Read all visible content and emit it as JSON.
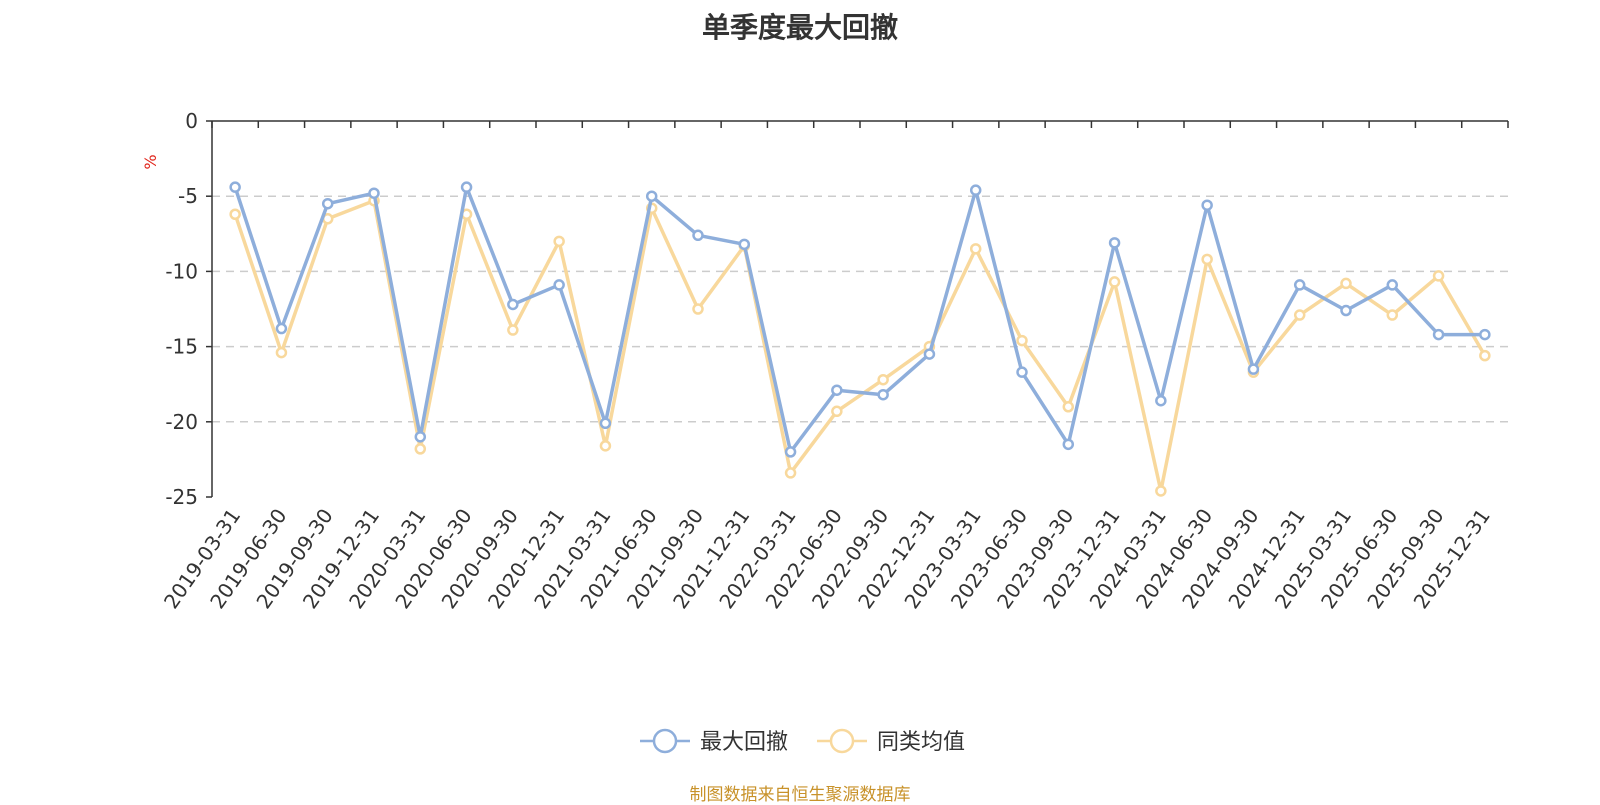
{
  "chart_data": {
    "type": "line",
    "title": "单季度最大回撤",
    "ylabel": "%",
    "ylim": [
      -25,
      0
    ],
    "yticks": [
      0,
      -5,
      -10,
      -15,
      -20,
      -25
    ],
    "grid": true,
    "legend_position": "bottom",
    "categories": [
      "2019-03-31",
      "2019-06-30",
      "2019-09-30",
      "2019-12-31",
      "2020-03-31",
      "2020-06-30",
      "2020-09-30",
      "2020-12-31",
      "2021-03-31",
      "2021-06-30",
      "2021-09-30",
      "2021-12-31",
      "2022-03-31",
      "2022-06-30",
      "2022-09-30",
      "2022-12-31",
      "2023-03-31",
      "2023-06-30",
      "2023-09-30",
      "2023-12-31",
      "2024-03-31",
      "2024-06-30",
      "2024-09-30",
      "2024-12-31",
      "2025-03-31",
      "2025-06-30",
      "2025-09-30",
      "2025-12-31"
    ],
    "series": [
      {
        "name": "最大回撤",
        "color": "#8eaedb",
        "values": [
          -4.4,
          -13.8,
          -5.5,
          -4.8,
          -21.0,
          -4.4,
          -12.2,
          -10.9,
          -20.1,
          -5.0,
          -7.6,
          -8.2,
          -22.0,
          -17.9,
          -18.2,
          -15.5,
          -4.6,
          -16.7,
          -21.5,
          -8.1,
          -18.6,
          -5.6,
          -16.5,
          -10.9,
          -12.6,
          -10.9,
          -14.2,
          -14.2
        ]
      },
      {
        "name": "同类均值",
        "color": "#f8d89c",
        "values": [
          -6.2,
          -15.4,
          -6.5,
          -5.3,
          -21.8,
          -6.2,
          -13.9,
          -8.0,
          -21.6,
          -5.8,
          -12.5,
          -8.3,
          -23.4,
          -19.3,
          -17.2,
          -15.0,
          -8.5,
          -14.6,
          -19.0,
          -10.7,
          -24.6,
          -9.2,
          -16.7,
          -12.9,
          -10.8,
          -12.9,
          -10.3,
          -15.6
        ]
      }
    ]
  },
  "source": "制图数据来自恒生聚源数据库"
}
